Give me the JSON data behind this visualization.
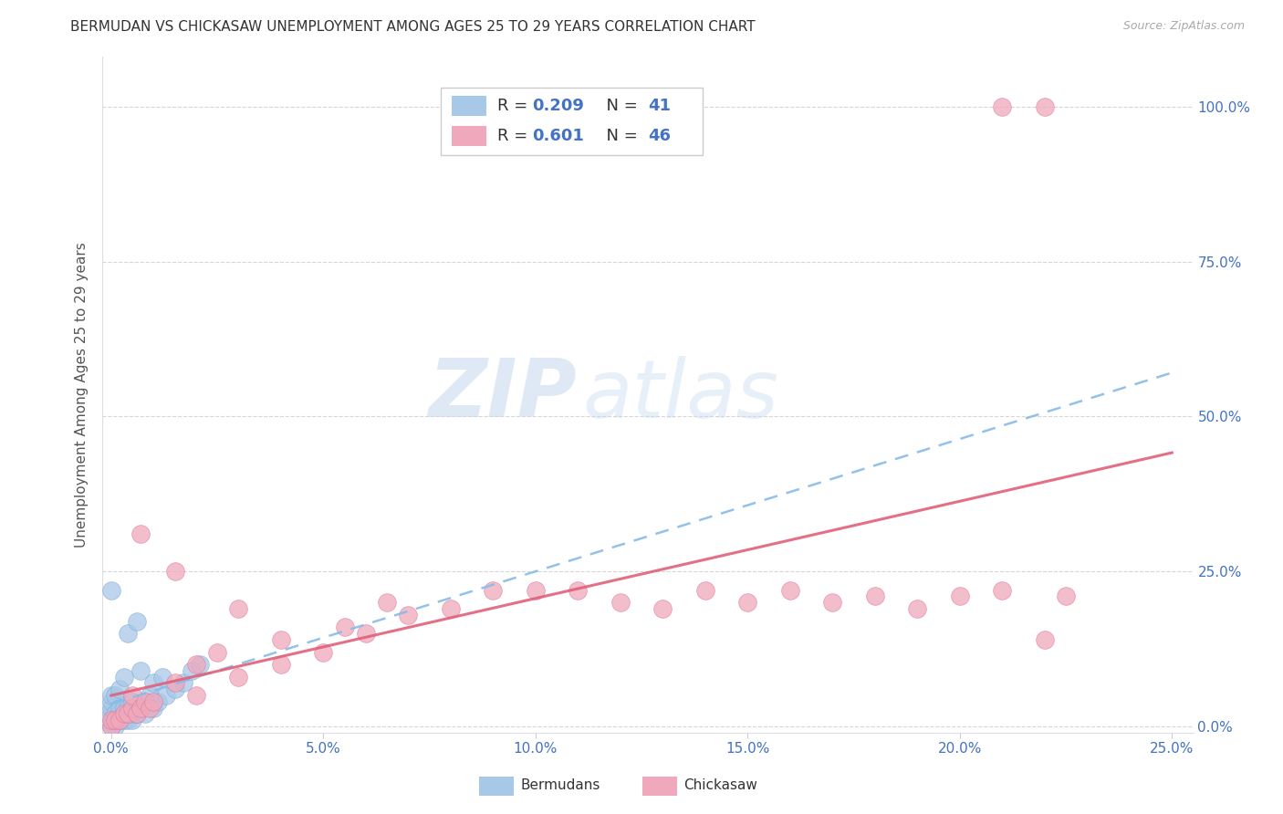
{
  "title": "BERMUDAN VS CHICKASAW UNEMPLOYMENT AMONG AGES 25 TO 29 YEARS CORRELATION CHART",
  "source": "Source: ZipAtlas.com",
  "ylabel_label": "Unemployment Among Ages 25 to 29 years",
  "x_tick_labels": [
    "0.0%",
    "5.0%",
    "10.0%",
    "15.0%",
    "20.0%",
    "25.0%"
  ],
  "y_tick_labels": [
    "0.0%",
    "25.0%",
    "50.0%",
    "75.0%",
    "100.0%"
  ],
  "x_ticks": [
    0.0,
    0.05,
    0.1,
    0.15,
    0.2,
    0.25
  ],
  "y_ticks": [
    0.0,
    0.25,
    0.5,
    0.75,
    1.0
  ],
  "xlim": [
    -0.002,
    0.255
  ],
  "ylim": [
    -0.01,
    1.08
  ],
  "bermudan_color": "#a8c8e8",
  "bermudan_edge_color": "#7aadd4",
  "chickasaw_color": "#f0a8bc",
  "chickasaw_edge_color": "#e07898",
  "bermudan_line_color": "#88bbe8",
  "chickasaw_line_color": "#e0607a",
  "legend_R_bermudan": "0.209",
  "legend_N_bermudan": "41",
  "legend_R_chickasaw": "0.601",
  "legend_N_chickasaw": "46",
  "watermark_zip": "ZIP",
  "watermark_atlas": "atlas",
  "bermudan_x": [
    0.0,
    0.0,
    0.0,
    0.0,
    0.0,
    0.0,
    0.0,
    0.001,
    0.001,
    0.001,
    0.001,
    0.002,
    0.002,
    0.002,
    0.002,
    0.003,
    0.003,
    0.003,
    0.003,
    0.004,
    0.004,
    0.004,
    0.005,
    0.005,
    0.005,
    0.006,
    0.006,
    0.007,
    0.007,
    0.008,
    0.008,
    0.009,
    0.01,
    0.01,
    0.011,
    0.012,
    0.013,
    0.015,
    0.017,
    0.019,
    0.021
  ],
  "bermudan_y": [
    0.0,
    0.01,
    0.02,
    0.03,
    0.04,
    0.05,
    0.22,
    0.0,
    0.01,
    0.02,
    0.05,
    0.01,
    0.02,
    0.03,
    0.06,
    0.01,
    0.02,
    0.03,
    0.08,
    0.01,
    0.03,
    0.15,
    0.01,
    0.02,
    0.04,
    0.02,
    0.17,
    0.03,
    0.09,
    0.02,
    0.04,
    0.05,
    0.03,
    0.07,
    0.04,
    0.08,
    0.05,
    0.06,
    0.07,
    0.09,
    0.1
  ],
  "chickasaw_x": [
    0.0,
    0.0,
    0.001,
    0.002,
    0.003,
    0.004,
    0.005,
    0.005,
    0.006,
    0.007,
    0.008,
    0.009,
    0.01,
    0.015,
    0.015,
    0.02,
    0.02,
    0.025,
    0.03,
    0.03,
    0.04,
    0.04,
    0.05,
    0.055,
    0.06,
    0.065,
    0.07,
    0.08,
    0.09,
    0.1,
    0.11,
    0.12,
    0.13,
    0.14,
    0.15,
    0.16,
    0.17,
    0.18,
    0.19,
    0.2,
    0.21,
    0.22,
    0.225,
    0.007,
    0.21,
    0.22
  ],
  "chickasaw_y": [
    0.0,
    0.01,
    0.01,
    0.01,
    0.02,
    0.02,
    0.03,
    0.05,
    0.02,
    0.03,
    0.04,
    0.03,
    0.04,
    0.07,
    0.25,
    0.05,
    0.1,
    0.12,
    0.08,
    0.19,
    0.1,
    0.14,
    0.12,
    0.16,
    0.15,
    0.2,
    0.18,
    0.19,
    0.22,
    0.22,
    0.22,
    0.2,
    0.19,
    0.22,
    0.2,
    0.22,
    0.2,
    0.21,
    0.19,
    0.21,
    0.22,
    0.14,
    0.21,
    0.31,
    1.0,
    1.0
  ]
}
